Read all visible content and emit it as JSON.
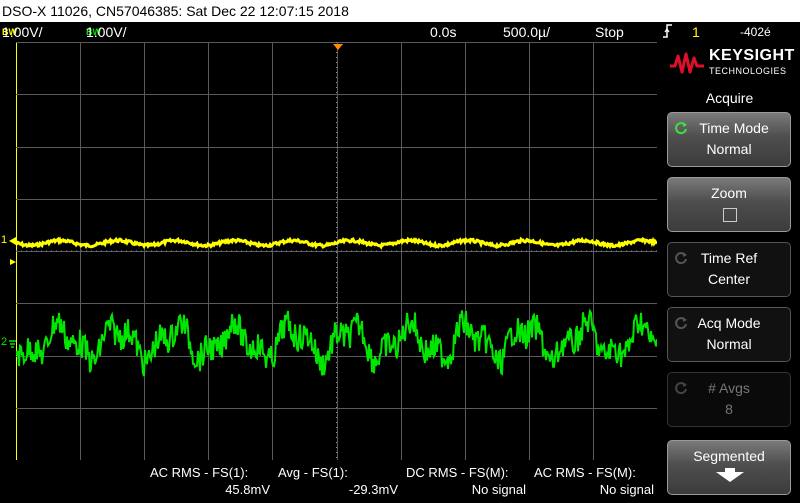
{
  "title": "DSO-X 11026, CN57046385: Sat Dec 22 12:07:15 2018",
  "status": {
    "ch1_bw": "BW",
    "ch1_scale": "1.00V/",
    "ch2_bw": "BW",
    "ch2_scale": "1.00V/",
    "time_offset": "0.0s",
    "time_scale": "500.0µ/",
    "run_state": "Stop",
    "trigger_icon": "rising-edge-icon",
    "trigger_source": "1",
    "trigger_level": "-402é"
  },
  "brand": {
    "name": "KEYSIGHT",
    "sub": "TECHNOLOGIES"
  },
  "menu": {
    "title": "Acquire",
    "softkeys": [
      {
        "line1": "Time Mode",
        "line2": "Normal"
      },
      {
        "line1": "Zoom",
        "line2": ""
      },
      {
        "line1": "Time Ref",
        "line2": "Center"
      },
      {
        "line1": "Acq Mode",
        "line2": "Normal"
      },
      {
        "line1": "# Avgs",
        "line2": "8"
      },
      {
        "line1": "Segmented",
        "line2": ""
      }
    ]
  },
  "markers": {
    "ch1": "1",
    "ch2": "2"
  },
  "measurements": [
    {
      "label": "AC RMS - FS(1):",
      "value": "45.8mV"
    },
    {
      "label": "Avg - FS(1):",
      "value": "-29.3mV"
    },
    {
      "label": "DC RMS - FS(M):",
      "value": "No signal"
    },
    {
      "label": "AC RMS - FS(M):",
      "value": "No signal"
    }
  ],
  "colors": {
    "ch1": "#ffff00",
    "ch2": "#00e600",
    "grid": "#5a5a5a",
    "trigger": "#ff8c00"
  }
}
